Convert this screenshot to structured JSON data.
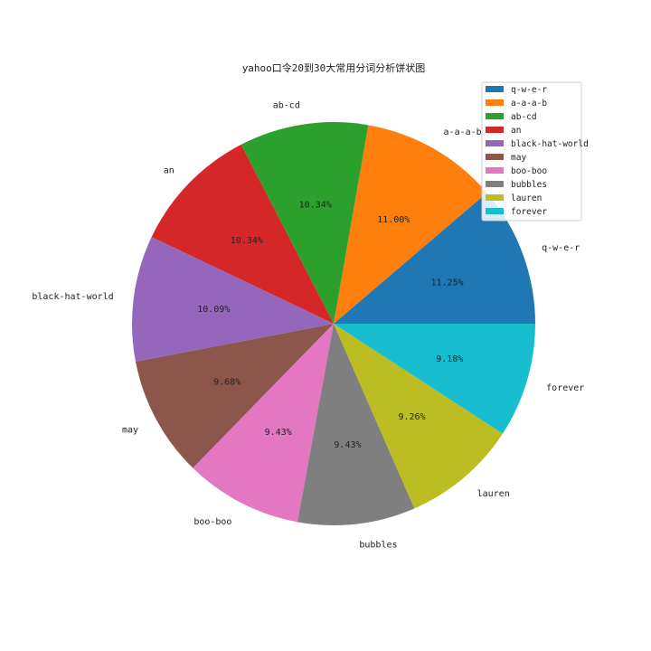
{
  "chart_data": {
    "type": "pie",
    "title": "yahoo口令20到30大常用分词分析饼状图",
    "slices": [
      {
        "label": "q-w-e-r",
        "value": 11.25,
        "pct_label": "11.25%",
        "color": "#1f77b4"
      },
      {
        "label": "a-a-a-b",
        "value": 11.0,
        "pct_label": "11.00%",
        "color": "#ff7f0e"
      },
      {
        "label": "ab-cd",
        "value": 10.34,
        "pct_label": "10.34%",
        "color": "#2ca02c"
      },
      {
        "label": "an",
        "value": 10.34,
        "pct_label": "10.34%",
        "color": "#d62728"
      },
      {
        "label": "black-hat-world",
        "value": 10.09,
        "pct_label": "10.09%",
        "color": "#9467bd"
      },
      {
        "label": "may",
        "value": 9.68,
        "pct_label": "9.68%",
        "color": "#8c564b"
      },
      {
        "label": "boo-boo",
        "value": 9.43,
        "pct_label": "9.43%",
        "color": "#e377c2"
      },
      {
        "label": "bubbles",
        "value": 9.43,
        "pct_label": "9.43%",
        "color": "#7f7f7f"
      },
      {
        "label": "lauren",
        "value": 9.26,
        "pct_label": "9.26%",
        "color": "#bcbd22"
      },
      {
        "label": "forever",
        "value": 9.18,
        "pct_label": "9.18%",
        "color": "#17becf"
      }
    ],
    "start_angle_deg": 0,
    "direction": "counterclockwise",
    "legend_position": "top-right"
  }
}
